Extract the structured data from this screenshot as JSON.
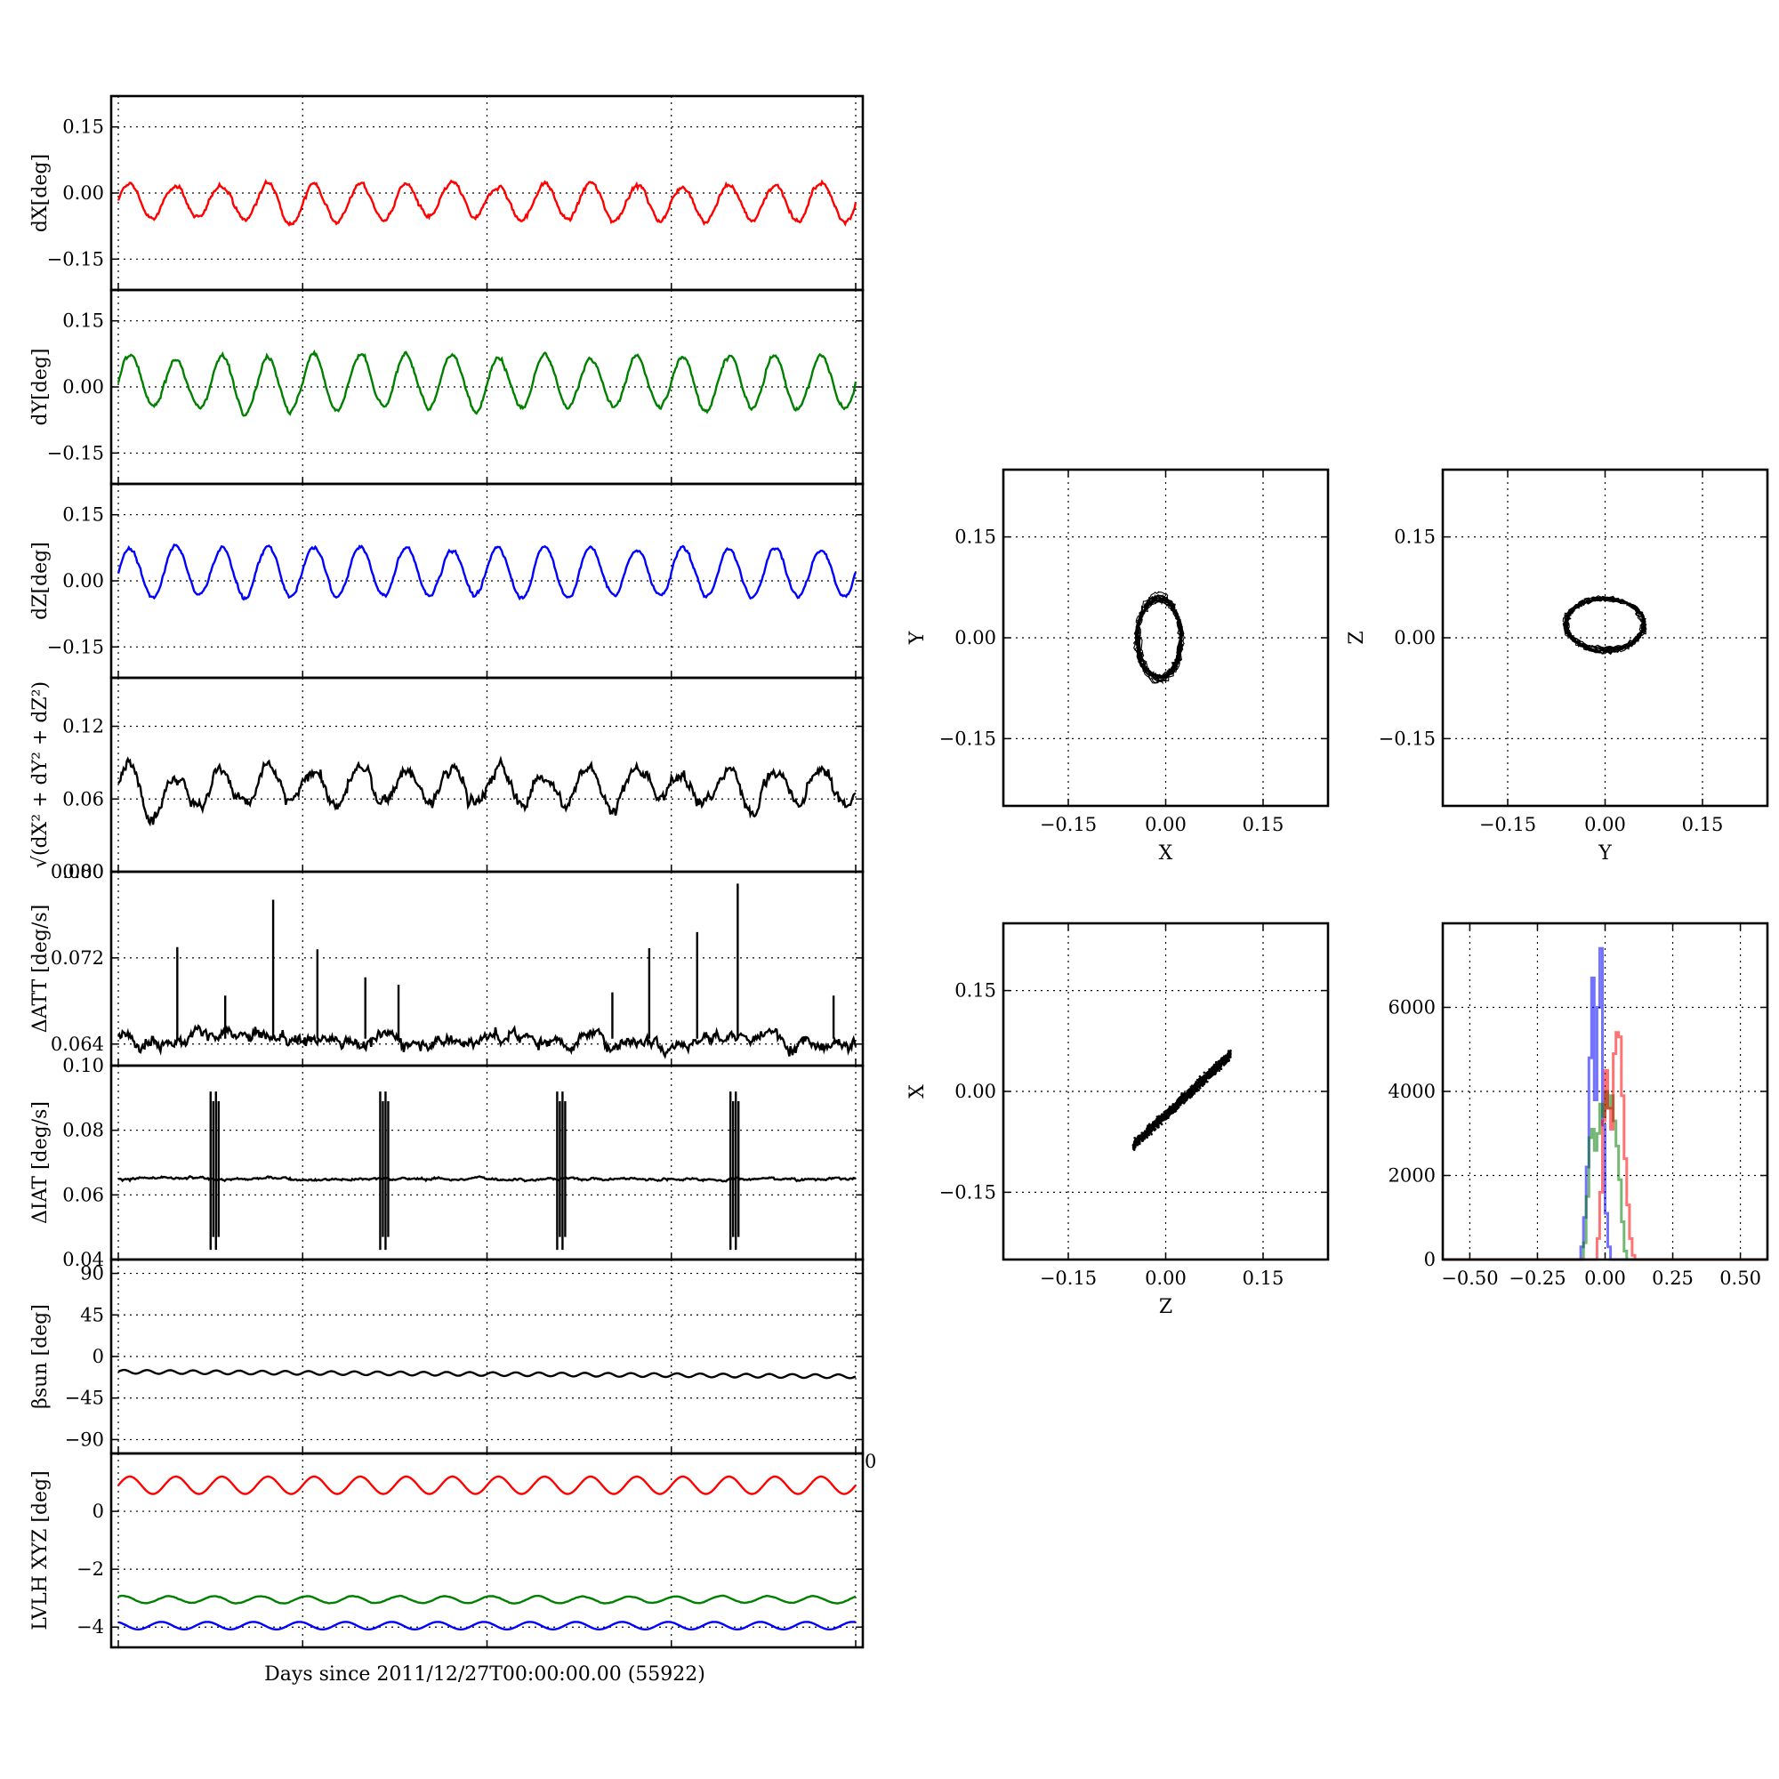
{
  "figure": {
    "xlabel": "Days since 2011/12/27T00:00:00.00 (55922)"
  },
  "colors": {
    "x": "#ff0000",
    "y": "#008000",
    "z": "#0000ff",
    "k": "#000000"
  },
  "chart_data": [
    {
      "id": "dx",
      "type": "line",
      "ylabel": "dX[deg]",
      "ylim": [
        -0.22,
        0.22
      ],
      "yticks": [
        "0.15",
        "0.00",
        "−0.15"
      ],
      "ytick_values": [
        0.15,
        0.0,
        -0.15
      ],
      "grid": true,
      "xlim": [
        0,
        1
      ],
      "x_tick_labels": false,
      "series": [
        {
          "color_key": "x",
          "baseline": -0.02,
          "amplitude": 0.04,
          "cycles": 16,
          "noise": 0.012
        }
      ]
    },
    {
      "id": "dy",
      "type": "line",
      "ylabel": "dY[deg]",
      "ylim": [
        -0.22,
        0.22
      ],
      "yticks": [
        "0.15",
        "0.00",
        "−0.15"
      ],
      "ytick_values": [
        0.15,
        0.0,
        -0.15
      ],
      "grid": true,
      "xlim": [
        0,
        1
      ],
      "x_tick_labels": false,
      "series": [
        {
          "color_key": "y",
          "baseline": 0.01,
          "amplitude": 0.06,
          "cycles": 16,
          "noise": 0.012
        }
      ]
    },
    {
      "id": "dz",
      "type": "line",
      "ylabel": "dZ[deg]",
      "ylim": [
        -0.22,
        0.22
      ],
      "yticks": [
        "0.15",
        "0.00",
        "−0.15"
      ],
      "ytick_values": [
        0.15,
        0.0,
        -0.15
      ],
      "grid": true,
      "xlim": [
        0,
        1
      ],
      "x_tick_labels": false,
      "series": [
        {
          "color_key": "z",
          "baseline": 0.02,
          "amplitude": 0.055,
          "cycles": 16,
          "noise": 0.01
        }
      ]
    },
    {
      "id": "mag",
      "type": "line",
      "ylabel": "√(dX² + dY² + dZ²)",
      "ylim": [
        0.0,
        0.16
      ],
      "yticks": [
        "0.12",
        "0.06",
        "0.00"
      ],
      "ytick_values": [
        0.12,
        0.06,
        0.0
      ],
      "grid": true,
      "xlim": [
        0,
        1
      ],
      "x_tick_labels": false,
      "series": [
        {
          "color_key": "k",
          "baseline": 0.07,
          "amplitude": 0.015,
          "cycles": 16,
          "noise": 0.012
        }
      ]
    },
    {
      "id": "datt",
      "type": "line",
      "ylabel": "ΔATT [deg/s]",
      "ylim": [
        0.062,
        0.08
      ],
      "yticks": [
        "0.080",
        "0.072",
        "0.064"
      ],
      "ytick_values": [
        0.08,
        0.072,
        0.064
      ],
      "grid": true,
      "xlim": [
        0,
        1
      ],
      "x_tick_labels": false,
      "series": [
        {
          "color_key": "k",
          "baseline": 0.0645,
          "amplitude": 0.0,
          "cycles": 16,
          "noise": 0.0013
        }
      ],
      "spikes": [
        [
          0.08,
          0.073
        ],
        [
          0.145,
          0.0685
        ],
        [
          0.21,
          0.0774
        ],
        [
          0.27,
          0.0728
        ],
        [
          0.335,
          0.0702
        ],
        [
          0.38,
          0.0695
        ],
        [
          0.67,
          0.0688
        ],
        [
          0.72,
          0.0729
        ],
        [
          0.785,
          0.0744
        ],
        [
          0.84,
          0.0789
        ],
        [
          0.97,
          0.0685
        ]
      ]
    },
    {
      "id": "diat",
      "type": "line",
      "ylabel": "ΔIAT [deg/s]",
      "ylim": [
        0.04,
        0.1
      ],
      "yticks": [
        "0.10",
        "0.08",
        "0.06",
        "0.04"
      ],
      "ytick_values": [
        0.1,
        0.08,
        0.06,
        0.04
      ],
      "grid": true,
      "xlim": [
        0,
        1
      ],
      "x_tick_labels": false,
      "series": [
        {
          "color_key": "k",
          "baseline": 0.065,
          "amplitude": 0.0,
          "cycles": 16,
          "noise": 0.0008
        }
      ],
      "bursts": [
        0.13,
        0.36,
        0.6,
        0.835
      ],
      "burst_range": [
        0.043,
        0.092
      ]
    },
    {
      "id": "beta",
      "type": "line",
      "ylabel": "βsun [deg]",
      "ylim": [
        -105,
        105
      ],
      "yticks": [
        "90",
        "45",
        "0",
        "−45",
        "−90"
      ],
      "ytick_values": [
        90,
        45,
        0,
        -45,
        -90
      ],
      "grid": true,
      "xlim": [
        0,
        1
      ],
      "x_tick_labels": false,
      "series": [
        {
          "color_key": "k",
          "baseline": -16.5,
          "amplitude": 2.0,
          "cycles": 32,
          "noise": 0.0,
          "trend": -5
        }
      ]
    },
    {
      "id": "lvlh",
      "type": "line",
      "ylabel": "LVLH XYZ [deg]",
      "ylim": [
        -4.7,
        2.0
      ],
      "yticks": [
        "0",
        "−2",
        "−4"
      ],
      "ytick_values": [
        0,
        -2,
        -4
      ],
      "grid": true,
      "xlim": [
        0,
        1
      ],
      "x_tick_labels": false,
      "top_right_label": "0",
      "series": [
        {
          "color_key": "x",
          "baseline": 0.9,
          "amplitude": 0.3,
          "cycles": 16,
          "noise": 0.0
        },
        {
          "color_key": "y",
          "baseline": -3.05,
          "amplitude": 0.12,
          "cycles": 16,
          "noise": 0.02
        },
        {
          "color_key": "z",
          "baseline": -3.95,
          "amplitude": 0.13,
          "cycles": 16,
          "noise": 0.0
        }
      ]
    },
    {
      "id": "xy",
      "type": "scatter",
      "xlabel": "X",
      "ylabel": "Y",
      "xlim": [
        -0.25,
        0.25
      ],
      "ylim": [
        -0.25,
        0.25
      ],
      "xticks": [
        "−0.15",
        "0.00",
        "0.15"
      ],
      "xtick_values": [
        -0.15,
        0.0,
        0.15
      ],
      "yticks": [
        "0.15",
        "0.00",
        "−0.15"
      ],
      "ytick_values": [
        0.15,
        0.0,
        -0.15
      ],
      "grid": true,
      "center": [
        -0.01,
        0.0
      ],
      "radius": [
        0.035,
        0.06
      ],
      "spread": [
        0.02,
        0.025
      ]
    },
    {
      "id": "yz",
      "type": "scatter",
      "xlabel": "Y",
      "ylabel": "Z",
      "xlim": [
        -0.25,
        0.25
      ],
      "ylim": [
        -0.25,
        0.25
      ],
      "xticks": [
        "−0.15",
        "0.00",
        "0.15"
      ],
      "xtick_values": [
        -0.15,
        0.0,
        0.15
      ],
      "yticks": [
        "0.15",
        "0.00",
        "−0.15"
      ],
      "ytick_values": [
        0.15,
        0.0,
        -0.15
      ],
      "grid": true,
      "center": [
        0.0,
        0.02
      ],
      "radius": [
        0.06,
        0.04
      ],
      "spread": [
        0.02,
        0.018
      ]
    },
    {
      "id": "zx",
      "type": "scatter",
      "xlabel": "Z",
      "ylabel": "X",
      "xlim": [
        -0.25,
        0.25
      ],
      "ylim": [
        -0.25,
        0.25
      ],
      "xticks": [
        "−0.15",
        "0.00",
        "0.15"
      ],
      "xtick_values": [
        -0.15,
        0.0,
        0.15
      ],
      "yticks": [
        "0.15",
        "0.00",
        "−0.15"
      ],
      "ytick_values": [
        0.15,
        0.0,
        -0.15
      ],
      "grid": true,
      "linear": {
        "x_from": -0.05,
        "x_to": 0.1,
        "slope": 0.9,
        "intercept": -0.035,
        "scatter": 0.012
      }
    },
    {
      "id": "hist",
      "type": "area",
      "xlim": [
        -0.6,
        0.6
      ],
      "ylim": [
        0,
        8000
      ],
      "xticks": [
        "−0.50",
        "−0.25",
        "0.00",
        "0.25",
        "0.50"
      ],
      "xtick_values": [
        -0.5,
        -0.25,
        0.0,
        0.25,
        0.5
      ],
      "yticks": [
        "6000",
        "4000",
        "2000",
        "0"
      ],
      "ytick_values": [
        6000,
        4000,
        2000,
        0
      ],
      "grid": true,
      "series": [
        {
          "color_key": "z",
          "bins": [
            -0.1,
            -0.09,
            -0.08,
            -0.07,
            -0.06,
            -0.05,
            -0.04,
            -0.03,
            -0.02,
            -0.01,
            0.0,
            0.01,
            0.02,
            0.03
          ],
          "counts": [
            0,
            300,
            1000,
            2200,
            4800,
            6700,
            3800,
            6000,
            7400,
            3200,
            1100,
            300,
            0,
            0
          ]
        },
        {
          "color_key": "y",
          "bins": [
            -0.09,
            -0.08,
            -0.07,
            -0.06,
            -0.05,
            -0.04,
            -0.03,
            -0.02,
            -0.01,
            0.0,
            0.01,
            0.02,
            0.03,
            0.04,
            0.05,
            0.06,
            0.07,
            0.08
          ],
          "counts": [
            0,
            400,
            1500,
            2900,
            3100,
            2600,
            3000,
            3700,
            3400,
            4000,
            3600,
            3900,
            3300,
            2700,
            1900,
            900,
            200,
            0
          ]
        },
        {
          "color_key": "x",
          "bins": [
            -0.04,
            -0.03,
            -0.02,
            -0.01,
            0.0,
            0.01,
            0.02,
            0.03,
            0.04,
            0.05,
            0.06,
            0.07,
            0.08,
            0.09,
            0.1,
            0.11
          ],
          "counts": [
            0,
            500,
            1600,
            3300,
            4500,
            3600,
            3100,
            4900,
            5400,
            5300,
            3900,
            2400,
            1300,
            500,
            100,
            0
          ]
        }
      ]
    }
  ]
}
